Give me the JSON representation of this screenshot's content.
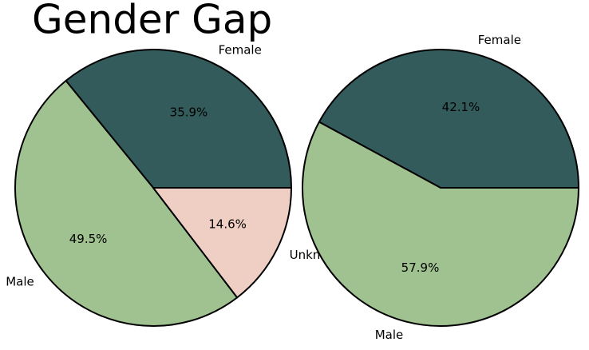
{
  "chart_data": [
    {
      "type": "pie",
      "title": "Gender Gap",
      "categories": [
        "Female",
        "Male",
        "Unknown"
      ],
      "values": [
        35.9,
        49.5,
        14.6
      ],
      "value_labels": [
        "35.9%",
        "49.5%",
        "14.6%"
      ],
      "colors": [
        "#335b5b",
        "#a0c190",
        "#efcfc3"
      ]
    },
    {
      "type": "pie",
      "categories": [
        "Female",
        "Male"
      ],
      "values": [
        42.1,
        57.9
      ],
      "value_labels": [
        "42.1%",
        "57.9%"
      ],
      "colors": [
        "#335b5b",
        "#a0c190"
      ]
    }
  ]
}
